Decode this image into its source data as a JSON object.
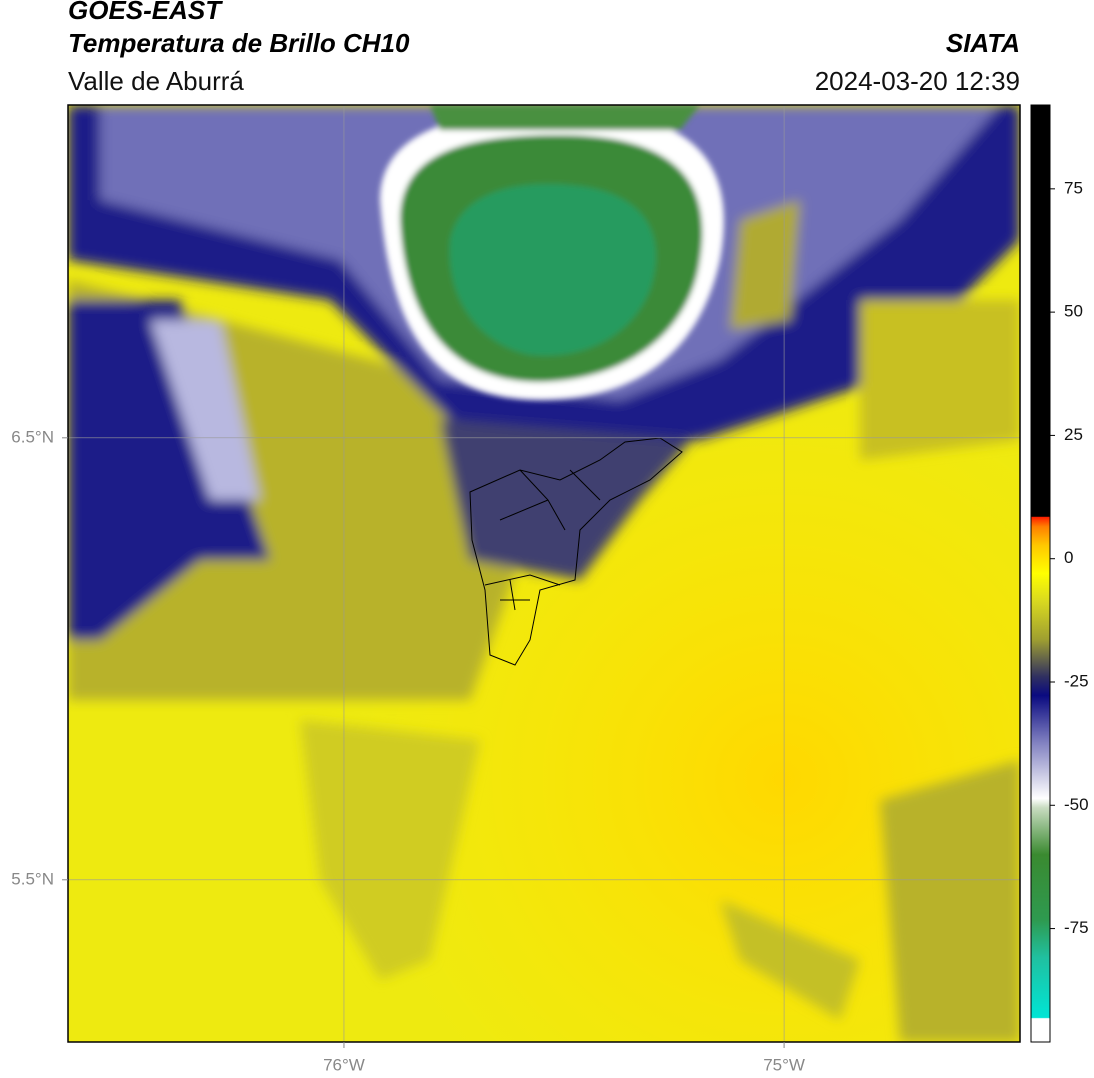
{
  "header": {
    "satellite": "GOES-EAST",
    "product": "Temperatura de Brillo CH10",
    "region": "Valle de Aburrá",
    "source": "SIATA",
    "datetime": "2024-03-20 12:39"
  },
  "map": {
    "xlim": [
      -76.627,
      -74.464
    ],
    "ylim": [
      5.133,
      7.253
    ],
    "xticks": [
      {
        "value": -76,
        "label": "76°W"
      },
      {
        "value": -75,
        "label": "75°W"
      }
    ],
    "yticks": [
      {
        "value": 6.5,
        "label": "6.5°N"
      },
      {
        "value": 5.5,
        "label": "5.5°N"
      }
    ],
    "grid": true
  },
  "colorbar": {
    "lim": [
      -98,
      92
    ],
    "ticks": [
      75,
      50,
      25,
      0,
      -25,
      -50,
      -75
    ]
  }
}
